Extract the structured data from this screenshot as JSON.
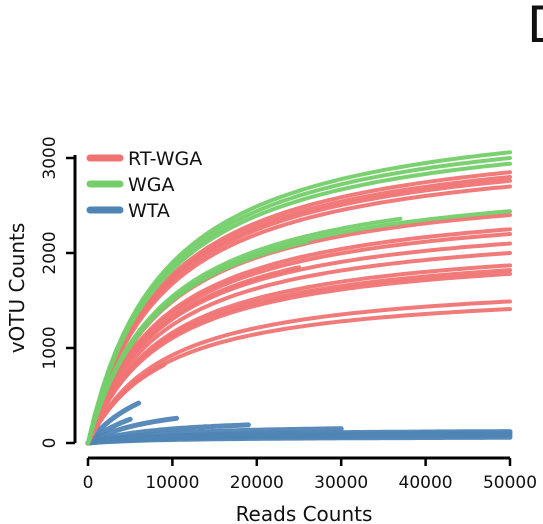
{
  "panel_letter": "D",
  "colors": {
    "RT-WGA": "#f07373",
    "WGA": "#74cf6a",
    "WTA": "#4f85b5",
    "axis": "#000000"
  },
  "chart_data": {
    "type": "line",
    "title": "",
    "xlabel": "Reads Counts",
    "ylabel": "vOTU Counts",
    "xlim": [
      0,
      50000
    ],
    "ylim": [
      0,
      3000
    ],
    "xticks": [
      "0",
      "10000",
      "20000",
      "30000",
      "40000",
      "50000"
    ],
    "yticks": [
      "0",
      "1000",
      "2000",
      "3000"
    ],
    "grid": false,
    "legend_position": "top-left",
    "legend": [
      "RT-WGA",
      "WGA",
      "WTA"
    ],
    "series": [
      {
        "name": "RT-WGA",
        "group": "RT-WGA",
        "curves": [
          {
            "max_x": 50000,
            "end_y": 2850
          },
          {
            "max_x": 50000,
            "end_y": 2800
          },
          {
            "max_x": 50000,
            "end_y": 2760
          },
          {
            "max_x": 50000,
            "end_y": 2700
          },
          {
            "max_x": 50000,
            "end_y": 2400
          },
          {
            "max_x": 50000,
            "end_y": 2250
          },
          {
            "max_x": 50000,
            "end_y": 2200
          },
          {
            "max_x": 50000,
            "end_y": 2100
          },
          {
            "max_x": 50000,
            "end_y": 2000
          },
          {
            "max_x": 50000,
            "end_y": 1870
          },
          {
            "max_x": 50000,
            "end_y": 1820
          },
          {
            "max_x": 50000,
            "end_y": 1780
          },
          {
            "max_x": 50000,
            "end_y": 1490
          },
          {
            "max_x": 50000,
            "end_y": 1410
          },
          {
            "max_x": 25000,
            "end_y": 1850
          },
          {
            "max_x": 9000,
            "end_y": 820
          }
        ]
      },
      {
        "name": "WGA",
        "group": "WGA",
        "curves": [
          {
            "max_x": 50000,
            "end_y": 3060
          },
          {
            "max_x": 50000,
            "end_y": 3000
          },
          {
            "max_x": 50000,
            "end_y": 2940
          },
          {
            "max_x": 50000,
            "end_y": 2440
          },
          {
            "max_x": 37000,
            "end_y": 2360
          },
          {
            "max_x": 26000,
            "end_y": 2120
          }
        ]
      },
      {
        "name": "WTA",
        "group": "WTA",
        "curves": [
          {
            "max_x": 6000,
            "end_y": 420
          },
          {
            "max_x": 10500,
            "end_y": 260
          },
          {
            "max_x": 19000,
            "end_y": 190
          },
          {
            "max_x": 5000,
            "end_y": 250
          },
          {
            "max_x": 30000,
            "end_y": 150
          },
          {
            "max_x": 50000,
            "end_y": 120
          },
          {
            "max_x": 50000,
            "end_y": 100
          },
          {
            "max_x": 50000,
            "end_y": 80
          },
          {
            "max_x": 50000,
            "end_y": 60
          },
          {
            "max_x": 42000,
            "end_y": 90
          }
        ]
      }
    ]
  }
}
